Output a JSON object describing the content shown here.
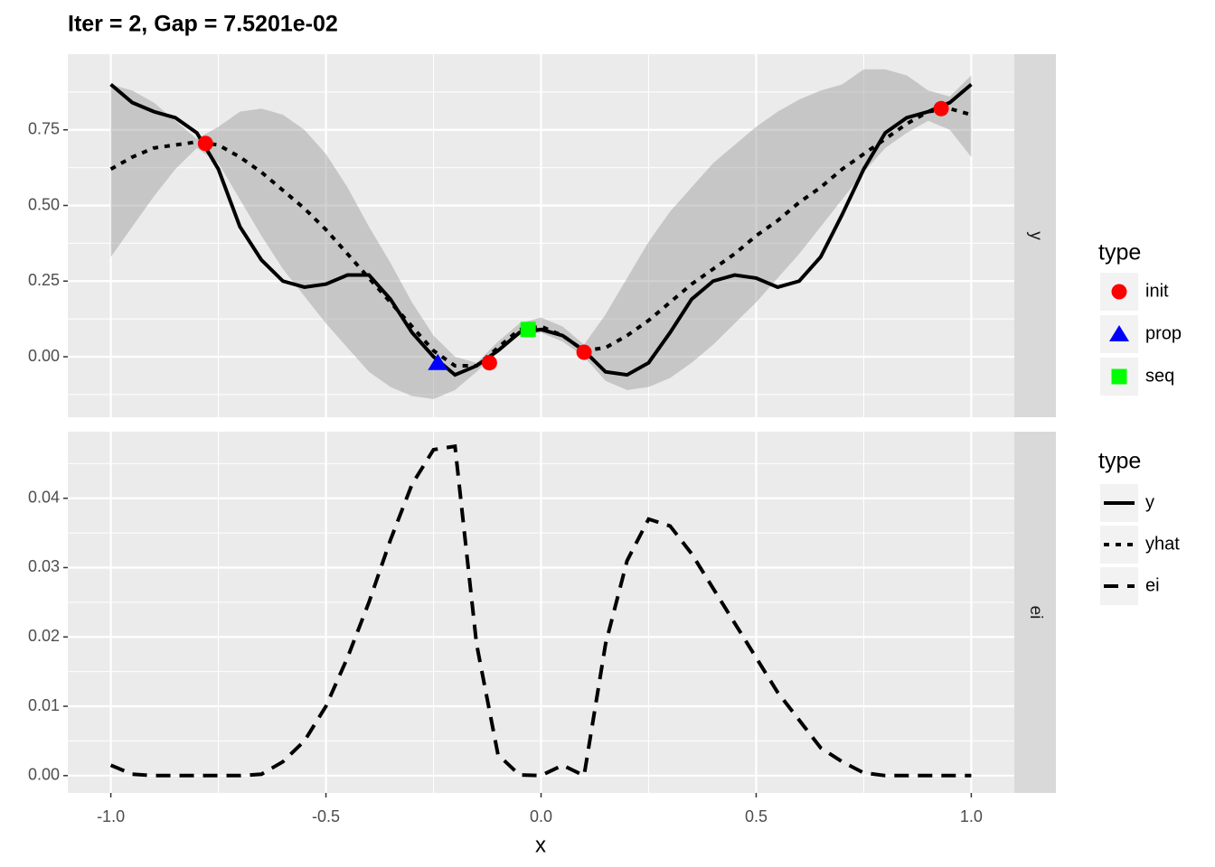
{
  "chart_data": {
    "type": "line",
    "title": "Iter = 2, Gap = 7.5201e-02",
    "x_label": "x",
    "xlim": [
      -1.1,
      1.1
    ],
    "xticks": [
      {
        "value": -1,
        "label": "-1.0"
      },
      {
        "value": -0.5,
        "label": "-0.5"
      },
      {
        "value": 0,
        "label": "0.0"
      },
      {
        "value": 0.5,
        "label": "0.5"
      },
      {
        "value": 1,
        "label": "1.0"
      }
    ],
    "grid": true,
    "legend_titles": [
      "type",
      "type"
    ],
    "x": [
      -1,
      -0.95,
      -0.9,
      -0.85,
      -0.8,
      -0.75,
      -0.7,
      -0.65,
      -0.6,
      -0.55,
      -0.5,
      -0.45,
      -0.4,
      -0.35,
      -0.3,
      -0.25,
      -0.2,
      -0.15,
      -0.1,
      -0.05,
      0,
      0.05,
      0.1,
      0.15,
      0.2,
      0.25,
      0.3,
      0.35,
      0.4,
      0.45,
      0.5,
      0.55,
      0.6,
      0.65,
      0.7,
      0.75,
      0.8,
      0.85,
      0.9,
      0.95,
      1
    ],
    "panels": [
      {
        "strip": "y",
        "ylim": [
          -0.2,
          1.0
        ],
        "yticks": [
          {
            "value": 0,
            "label": "0.00"
          },
          {
            "value": 0.25,
            "label": "0.25"
          },
          {
            "value": 0.5,
            "label": "0.50"
          },
          {
            "value": 0.75,
            "label": "0.75"
          }
        ],
        "band": {
          "color": "#999999",
          "lower": [
            0.33,
            0.43,
            0.53,
            0.62,
            0.69,
            0.64,
            0.52,
            0.4,
            0.29,
            0.2,
            0.11,
            0.03,
            -0.05,
            -0.1,
            -0.13,
            -0.14,
            -0.11,
            -0.05,
            0.02,
            0.07,
            0.08,
            0.05,
            0.0,
            -0.08,
            -0.11,
            -0.1,
            -0.07,
            -0.02,
            0.04,
            0.11,
            0.18,
            0.26,
            0.34,
            0.43,
            0.52,
            0.61,
            0.69,
            0.74,
            0.78,
            0.75,
            0.66
          ],
          "upper": [
            0.9,
            0.88,
            0.84,
            0.78,
            0.72,
            0.76,
            0.81,
            0.82,
            0.8,
            0.75,
            0.67,
            0.56,
            0.43,
            0.31,
            0.18,
            0.07,
            0.0,
            -0.02,
            0.05,
            0.11,
            0.13,
            0.1,
            0.04,
            0.14,
            0.26,
            0.38,
            0.48,
            0.56,
            0.64,
            0.7,
            0.76,
            0.81,
            0.85,
            0.88,
            0.9,
            0.95,
            0.95,
            0.93,
            0.88,
            0.86,
            0.93
          ]
        },
        "series": [
          {
            "name": "y",
            "color": "#000000",
            "linetype": "solid",
            "values": [
              0.9,
              0.84,
              0.81,
              0.79,
              0.74,
              0.62,
              0.43,
              0.32,
              0.25,
              0.23,
              0.24,
              0.27,
              0.27,
              0.19,
              0.08,
              0.0,
              -0.06,
              -0.03,
              0.02,
              0.08,
              0.09,
              0.07,
              0.02,
              -0.05,
              -0.06,
              -0.02,
              0.08,
              0.19,
              0.25,
              0.27,
              0.26,
              0.23,
              0.25,
              0.33,
              0.47,
              0.62,
              0.74,
              0.79,
              0.81,
              0.84,
              0.9
            ]
          },
          {
            "name": "yhat",
            "color": "#000000",
            "linetype": "dotted",
            "values": [
              0.62,
              0.66,
              0.69,
              0.7,
              0.71,
              0.7,
              0.66,
              0.61,
              0.55,
              0.49,
              0.42,
              0.34,
              0.26,
              0.18,
              0.1,
              0.02,
              -0.03,
              -0.03,
              0.03,
              0.09,
              0.1,
              0.07,
              0.02,
              0.03,
              0.07,
              0.12,
              0.18,
              0.24,
              0.29,
              0.34,
              0.4,
              0.45,
              0.51,
              0.56,
              0.62,
              0.67,
              0.72,
              0.77,
              0.81,
              0.82,
              0.8
            ]
          }
        ],
        "points": [
          {
            "name": "init",
            "color": "#ff0000",
            "shape": "circle",
            "x": [
              -0.78,
              -0.12,
              0.1,
              0.93
            ],
            "y": [
              0.705,
              -0.02,
              0.015,
              0.82
            ]
          },
          {
            "name": "prop",
            "color": "#0000ff",
            "shape": "triangle",
            "x": [
              -0.24
            ],
            "y": [
              -0.02
            ]
          },
          {
            "name": "seq",
            "color": "#00ff00",
            "shape": "square",
            "x": [
              -0.03
            ],
            "y": [
              0.09
            ]
          }
        ]
      },
      {
        "strip": "ei",
        "ylim": [
          -0.0025,
          0.0496
        ],
        "yticks": [
          {
            "value": 0,
            "label": "0.00"
          },
          0.01,
          0.02,
          0.03,
          0.04
        ],
        "series": [
          {
            "name": "ei",
            "color": "#000000",
            "linetype": "dashed",
            "values": [
              0.0015,
              0.0002,
              0,
              0,
              0,
              0,
              0,
              0.0002,
              0.002,
              0.005,
              0.01,
              0.017,
              0.025,
              0.034,
              0.042,
              0.047,
              0.0475,
              0.019,
              0.003,
              0.0001,
              0,
              0.0015,
              0,
              0.019,
              0.031,
              0.037,
              0.036,
              0.032,
              0.027,
              0.022,
              0.017,
              0.012,
              0.008,
              0.004,
              0.002,
              0.0004,
              0,
              0,
              0,
              0,
              0
            ]
          }
        ]
      }
    ]
  }
}
